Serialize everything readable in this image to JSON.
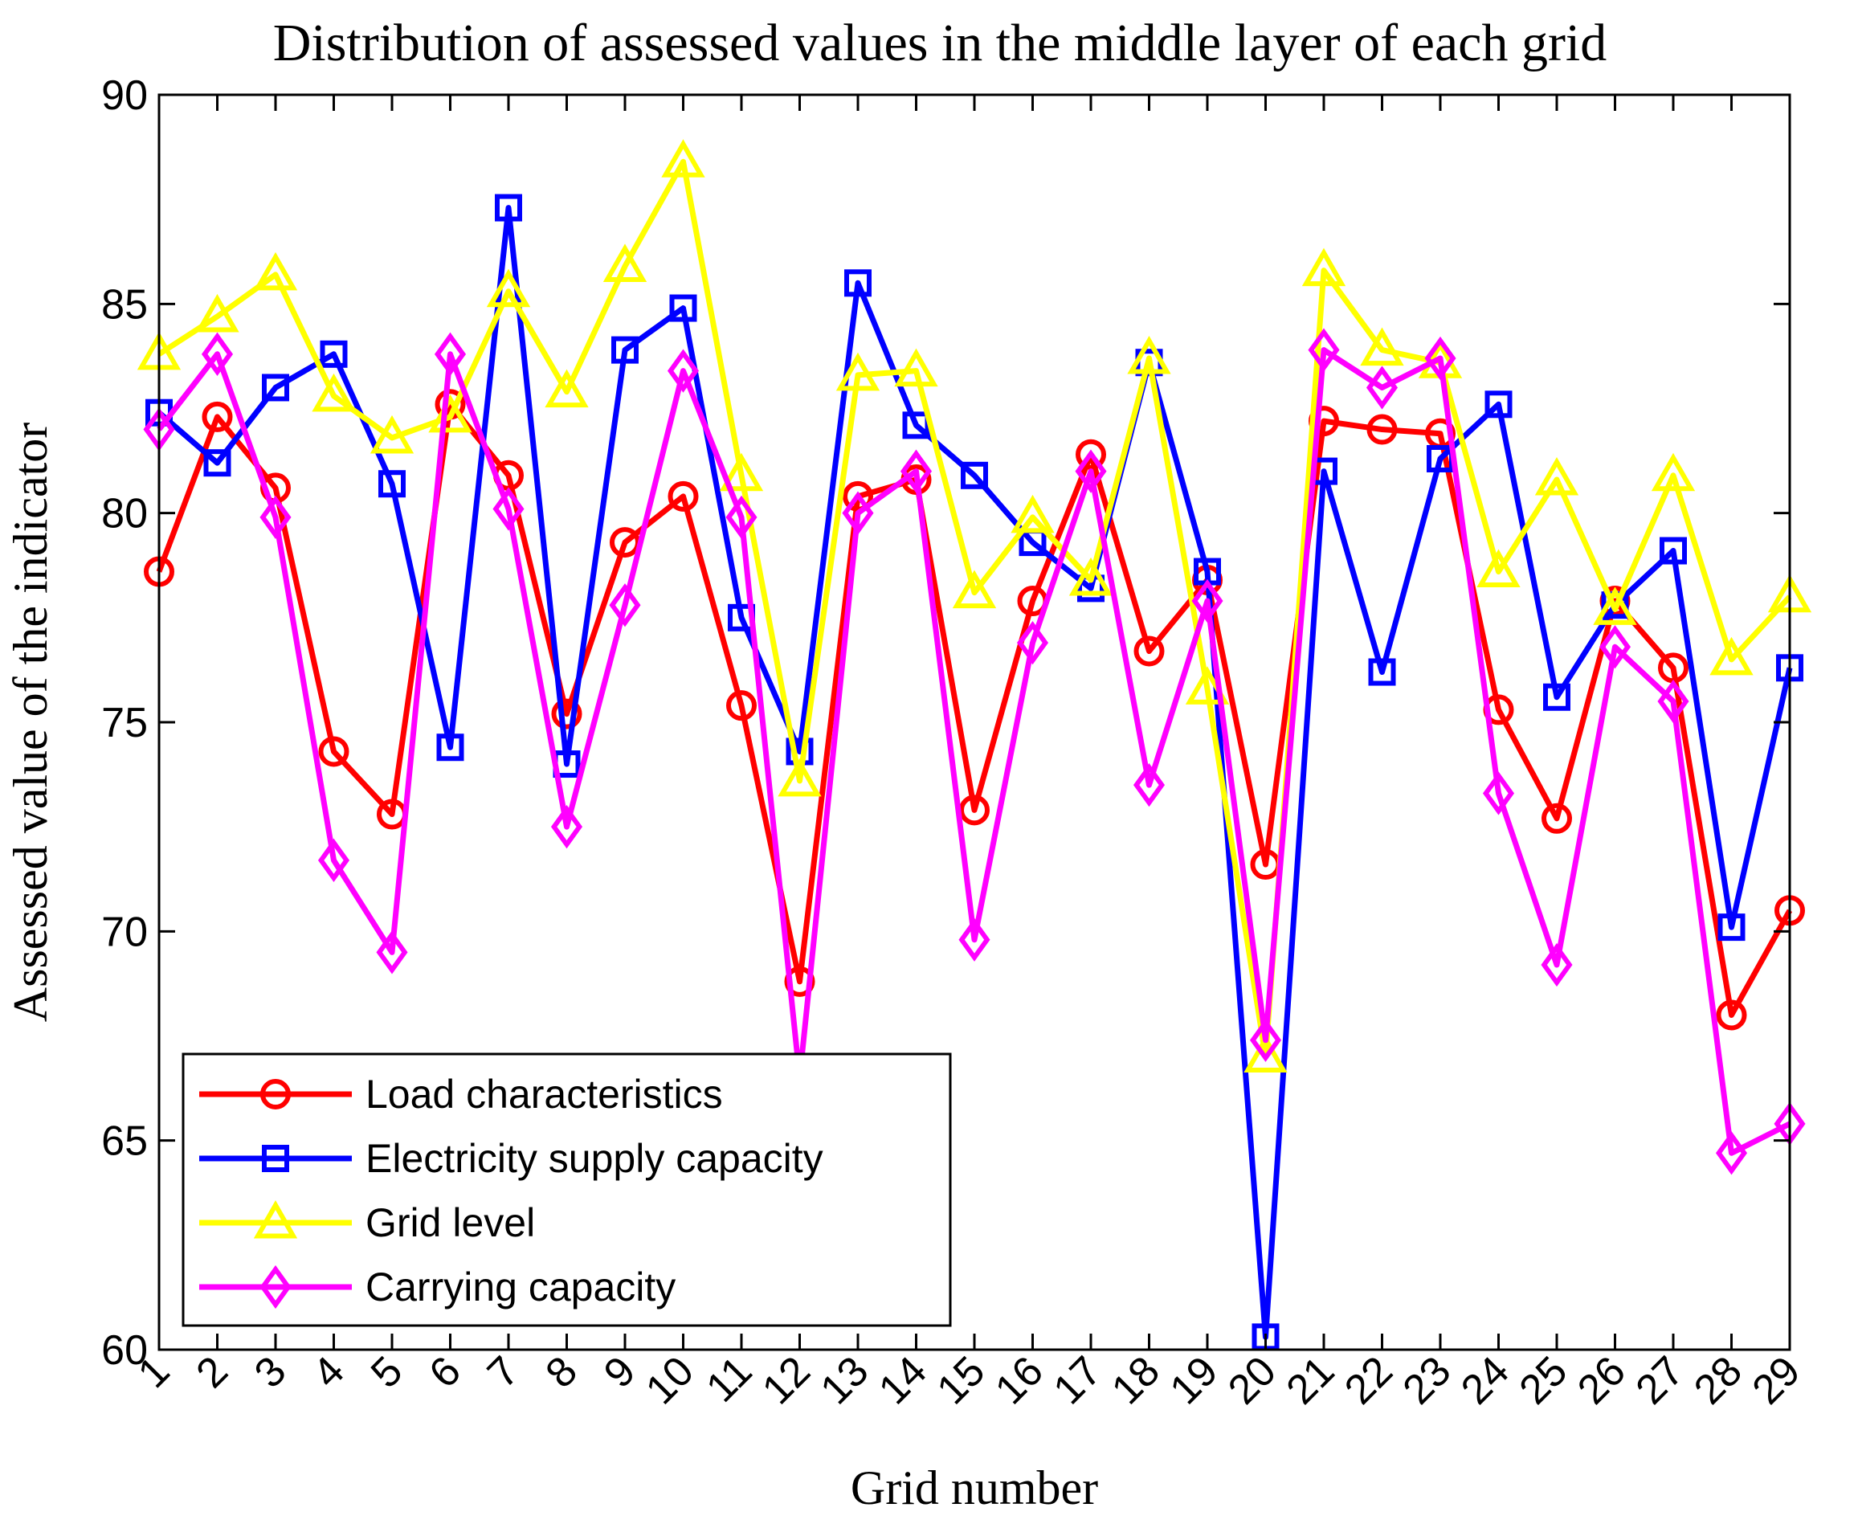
{
  "chart_data": {
    "type": "line",
    "title": "Distribution of assessed values in the middle layer of each grid",
    "xlabel": "Grid number",
    "ylabel": "Assessed value of the indicator",
    "xlim": [
      1,
      29
    ],
    "ylim": [
      60,
      90
    ],
    "yticks": [
      60,
      65,
      70,
      75,
      80,
      85,
      90
    ],
    "categories": [
      "1",
      "2",
      "3",
      "4",
      "5",
      "6",
      "7",
      "8",
      "9",
      "10",
      "11",
      "12",
      "13",
      "14",
      "15",
      "16",
      "17",
      "18",
      "19",
      "20",
      "21",
      "22",
      "23",
      "24",
      "25",
      "26",
      "27",
      "28",
      "29"
    ],
    "grid": false,
    "legend_position": "bottom-left",
    "series": [
      {
        "name": "Load characteristics",
        "color": "#ff0000",
        "marker": "circle",
        "values": [
          78.6,
          82.3,
          80.6,
          74.3,
          72.8,
          82.6,
          80.9,
          75.2,
          79.3,
          80.4,
          75.4,
          68.8,
          80.4,
          80.8,
          72.9,
          77.9,
          81.4,
          76.7,
          78.4,
          71.6,
          82.2,
          82.0,
          81.9,
          75.3,
          72.7,
          77.9,
          76.3,
          68.0,
          70.5
        ]
      },
      {
        "name": "Electricity supply capacity",
        "color": "#0000ff",
        "marker": "square",
        "values": [
          82.4,
          81.2,
          83.0,
          83.8,
          80.7,
          74.4,
          87.3,
          74.0,
          83.9,
          84.9,
          77.5,
          74.3,
          85.5,
          82.1,
          80.9,
          79.3,
          78.2,
          83.6,
          78.6,
          60.3,
          81.0,
          76.2,
          81.3,
          82.6,
          75.6,
          77.8,
          79.1,
          70.1,
          76.3
        ]
      },
      {
        "name": "Grid level",
        "color": "#ffff00",
        "marker": "triangle",
        "values": [
          83.8,
          84.7,
          85.7,
          82.8,
          81.8,
          82.3,
          85.3,
          82.9,
          85.9,
          88.4,
          80.9,
          73.6,
          83.3,
          83.4,
          78.1,
          79.9,
          78.4,
          83.7,
          75.8,
          67.0,
          85.8,
          83.9,
          83.6,
          78.6,
          80.8,
          77.7,
          80.9,
          76.5,
          78.0
        ]
      },
      {
        "name": "Carrying capacity",
        "color": "#ff00ff",
        "marker": "diamond",
        "values": [
          82.0,
          83.8,
          79.9,
          71.7,
          69.5,
          83.8,
          80.1,
          72.5,
          77.8,
          83.4,
          79.9,
          66.5,
          80.0,
          81.0,
          69.8,
          76.9,
          81.0,
          73.5,
          77.9,
          67.4,
          83.9,
          83.0,
          83.7,
          73.3,
          69.2,
          76.8,
          75.5,
          64.7,
          65.4
        ]
      }
    ]
  }
}
